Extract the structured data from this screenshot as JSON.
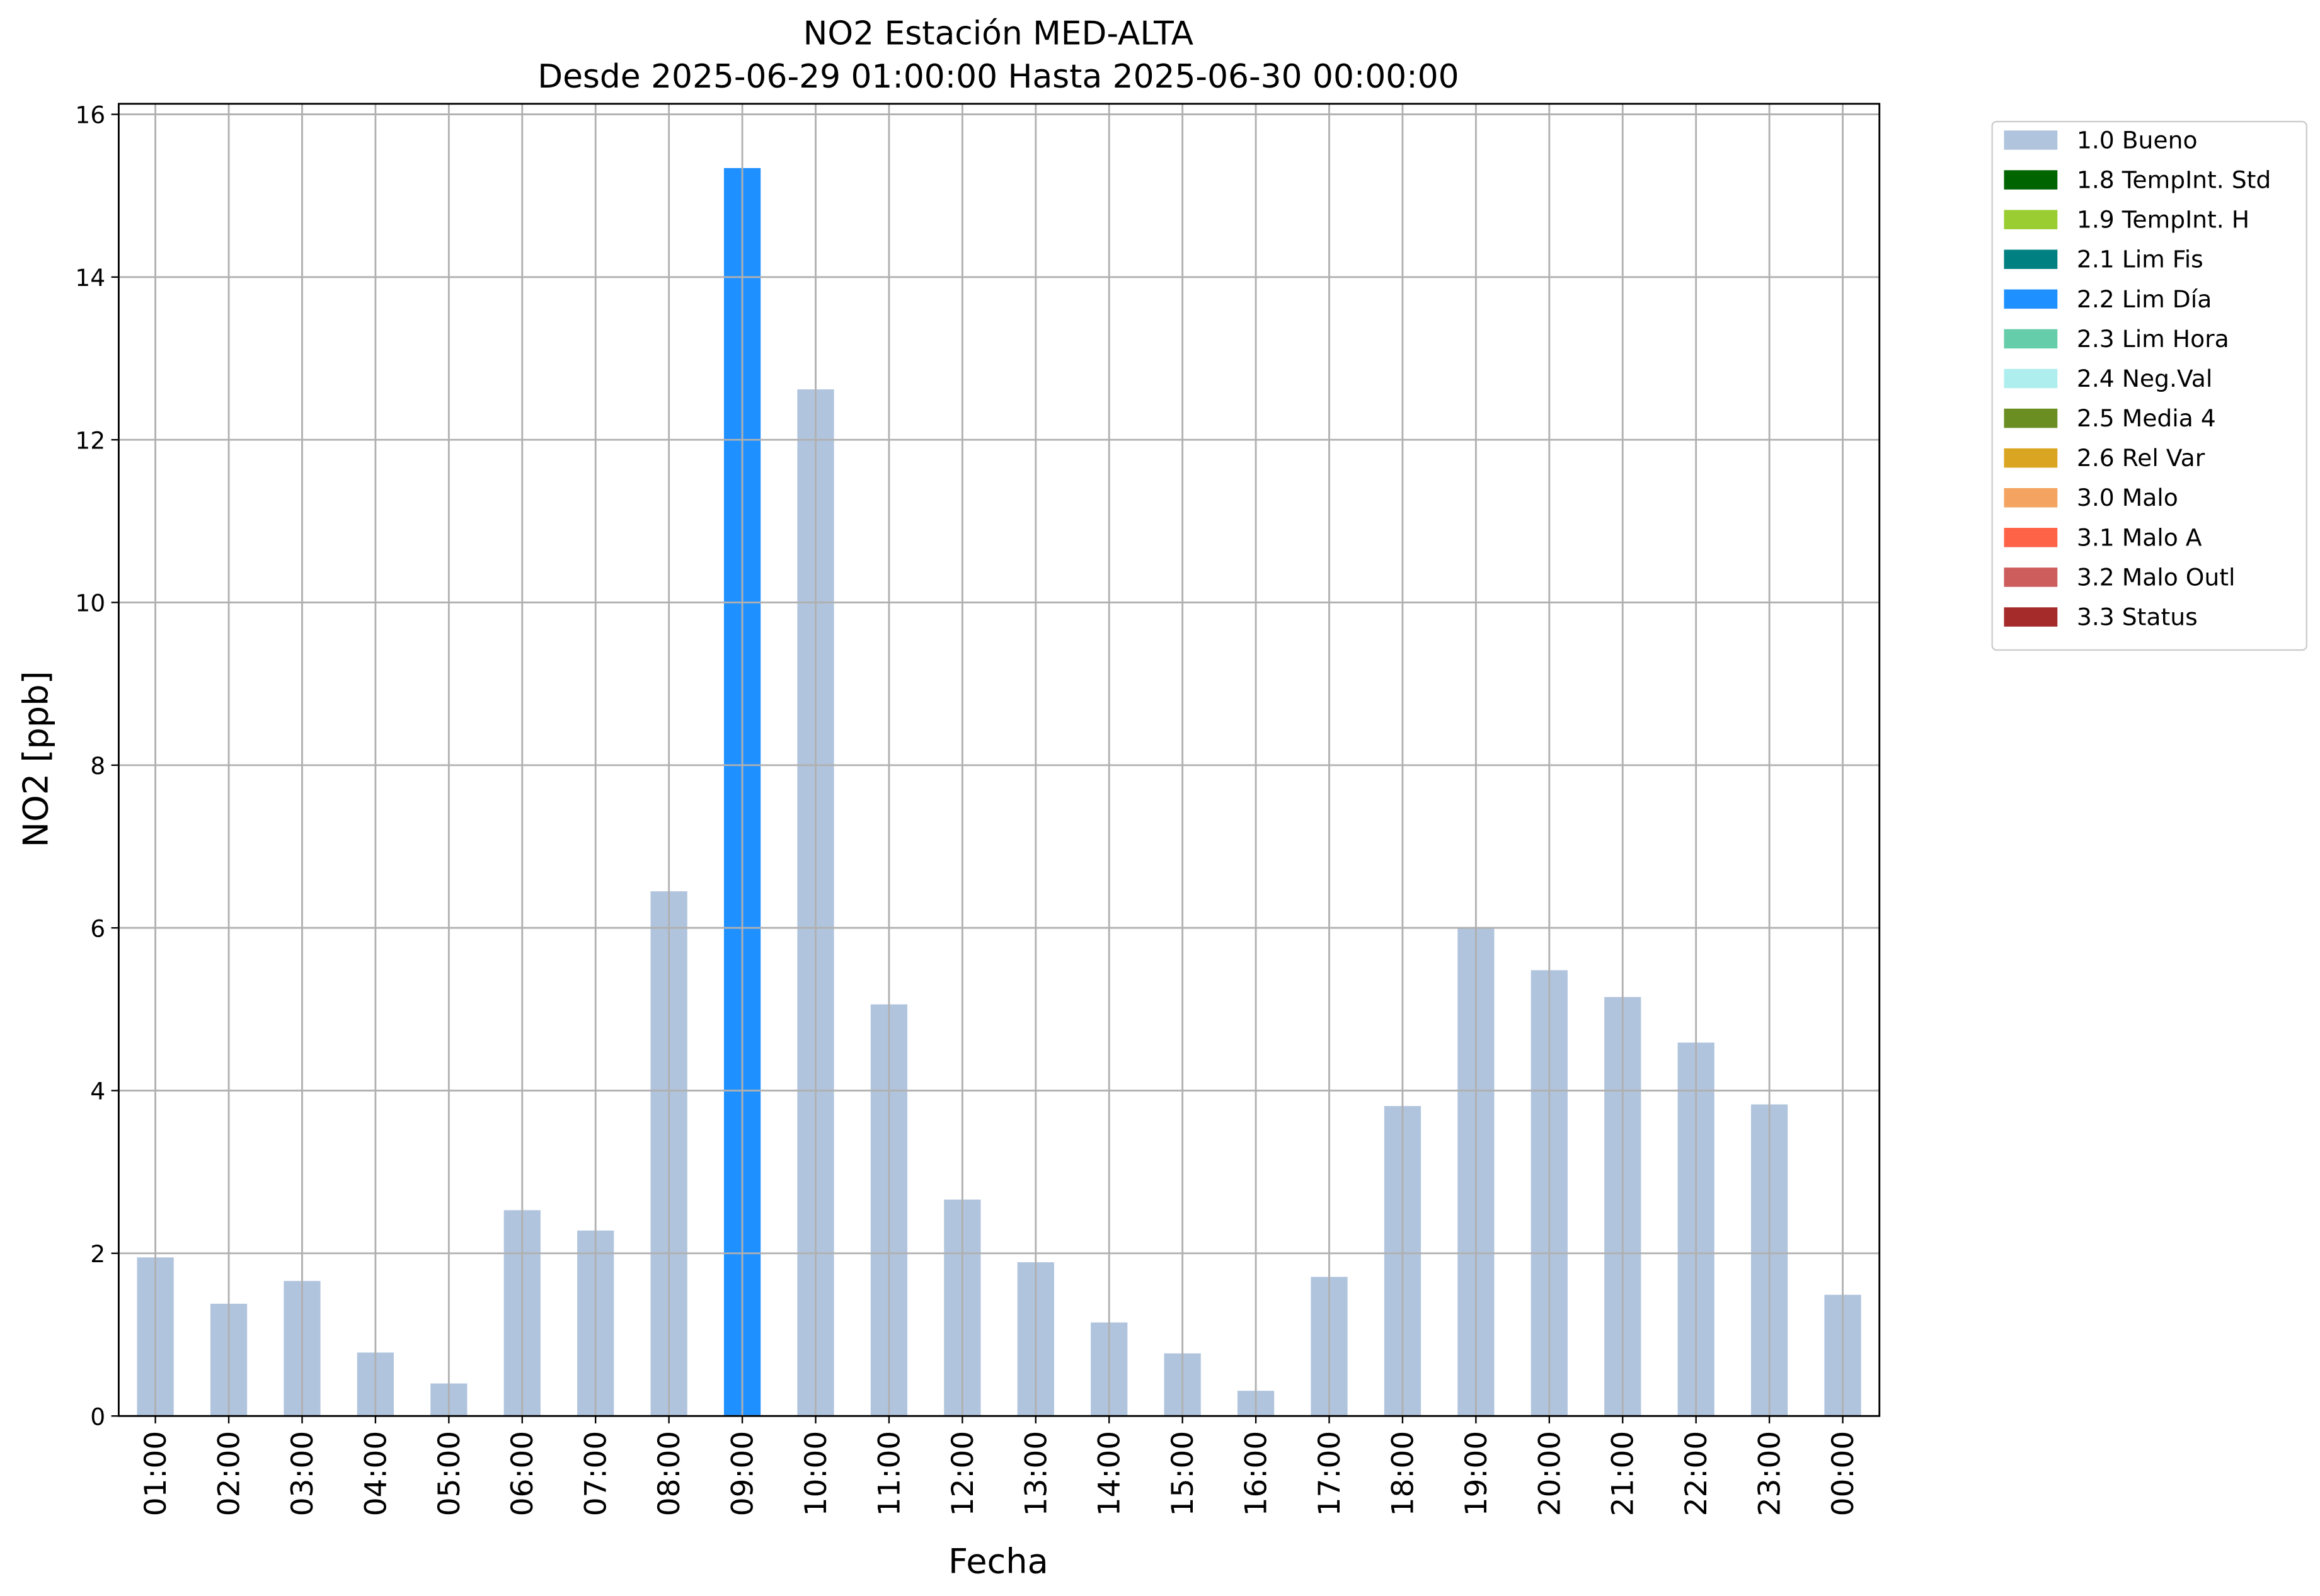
{
  "chart_data": {
    "type": "stacked-bar",
    "title": "NO2 Estación MED-ALTA",
    "subtitle": "Desde 2025-06-29 01:00:00 Hasta 2025-06-30 00:00:00",
    "x_label": "Fecha",
    "y_label": "NO2 [ppb]",
    "categories": [
      "01:00",
      "02:00",
      "03:00",
      "04:00",
      "05:00",
      "06:00",
      "07:00",
      "08:00",
      "09:00",
      "10:00",
      "11:00",
      "12:00",
      "13:00",
      "14:00",
      "15:00",
      "16:00",
      "17:00",
      "18:00",
      "19:00",
      "20:00",
      "21:00",
      "22:00",
      "23:00",
      "00:00"
    ],
    "series": [
      {
        "name": "1.0 Bueno",
        "color": "#b0c4de",
        "values": [
          1.95,
          1.38,
          1.66,
          0.78,
          0.4,
          2.53,
          2.28,
          6.45,
          null,
          12.62,
          5.06,
          2.66,
          1.89,
          1.15,
          0.77,
          0.31,
          1.71,
          3.81,
          6.01,
          5.48,
          5.15,
          4.59,
          3.83,
          1.49
        ]
      },
      {
        "name": "1.8 TempInt. Std",
        "color": "#006400",
        "values": [
          null,
          null,
          null,
          null,
          null,
          null,
          null,
          null,
          null,
          null,
          null,
          null,
          null,
          null,
          null,
          null,
          null,
          null,
          null,
          null,
          null,
          null,
          null,
          null
        ]
      },
      {
        "name": "1.9 TempInt. H",
        "color": "#9acd32",
        "values": [
          null,
          null,
          null,
          null,
          null,
          null,
          null,
          null,
          null,
          null,
          null,
          null,
          null,
          null,
          null,
          null,
          null,
          null,
          null,
          null,
          null,
          null,
          null,
          null
        ]
      },
      {
        "name": "2.1 Lim Fis",
        "color": "#008080",
        "values": [
          null,
          null,
          null,
          null,
          null,
          null,
          null,
          null,
          null,
          null,
          null,
          null,
          null,
          null,
          null,
          null,
          null,
          null,
          null,
          null,
          null,
          null,
          null,
          null
        ]
      },
      {
        "name": "2.2 Lim Día",
        "color": "#1e90ff",
        "values": [
          null,
          null,
          null,
          null,
          null,
          null,
          null,
          null,
          15.34,
          null,
          null,
          null,
          null,
          null,
          null,
          null,
          null,
          null,
          null,
          null,
          null,
          null,
          null,
          null
        ]
      },
      {
        "name": "2.3 Lim Hora",
        "color": "#66cdaa",
        "values": [
          null,
          null,
          null,
          null,
          null,
          null,
          null,
          null,
          null,
          null,
          null,
          null,
          null,
          null,
          null,
          null,
          null,
          null,
          null,
          null,
          null,
          null,
          null,
          null
        ]
      },
      {
        "name": "2.4 Neg.Val",
        "color": "#afeeee",
        "values": [
          null,
          null,
          null,
          null,
          null,
          null,
          null,
          null,
          null,
          null,
          null,
          null,
          null,
          null,
          null,
          null,
          null,
          null,
          null,
          null,
          null,
          null,
          null,
          null
        ]
      },
      {
        "name": "2.5 Media 4",
        "color": "#6b8e23",
        "values": [
          null,
          null,
          null,
          null,
          null,
          null,
          null,
          null,
          null,
          null,
          null,
          null,
          null,
          null,
          null,
          null,
          null,
          null,
          null,
          null,
          null,
          null,
          null,
          null
        ]
      },
      {
        "name": "2.6 Rel Var",
        "color": "#daa520",
        "values": [
          null,
          null,
          null,
          null,
          null,
          null,
          null,
          null,
          null,
          null,
          null,
          null,
          null,
          null,
          null,
          null,
          null,
          null,
          null,
          null,
          null,
          null,
          null,
          null
        ]
      },
      {
        "name": "3.0 Malo",
        "color": "#f4a460",
        "values": [
          null,
          null,
          null,
          null,
          null,
          null,
          null,
          null,
          null,
          null,
          null,
          null,
          null,
          null,
          null,
          null,
          null,
          null,
          null,
          null,
          null,
          null,
          null,
          null
        ]
      },
      {
        "name": "3.1 Malo A",
        "color": "#ff6347",
        "values": [
          null,
          null,
          null,
          null,
          null,
          null,
          null,
          null,
          null,
          null,
          null,
          null,
          null,
          null,
          null,
          null,
          null,
          null,
          null,
          null,
          null,
          null,
          null,
          null
        ]
      },
      {
        "name": "3.2 Malo Outl",
        "color": "#cd5c5c",
        "values": [
          null,
          null,
          null,
          null,
          null,
          null,
          null,
          null,
          null,
          null,
          null,
          null,
          null,
          null,
          null,
          null,
          null,
          null,
          null,
          null,
          null,
          null,
          null,
          null
        ]
      },
      {
        "name": "3.3 Status",
        "color": "#a52a2a",
        "values": [
          null,
          null,
          null,
          null,
          null,
          null,
          null,
          null,
          null,
          null,
          null,
          null,
          null,
          null,
          null,
          null,
          null,
          null,
          null,
          null,
          null,
          null,
          null,
          null
        ]
      }
    ],
    "ylim": [
      0,
      16.13
    ],
    "yticks": [
      0,
      2,
      4,
      6,
      8,
      10,
      12,
      14,
      16
    ],
    "grid": true,
    "legend": "outside-right"
  }
}
